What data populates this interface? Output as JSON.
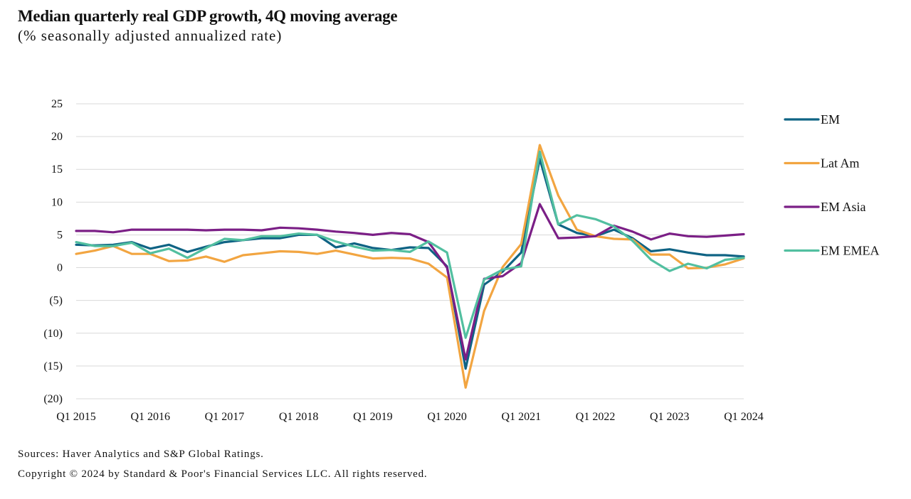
{
  "chart_data": {
    "type": "line",
    "title": "Median quarterly real GDP growth, 4Q moving average",
    "subtitle": "(% seasonally adjusted annualized rate)",
    "xlabel": "",
    "ylabel": "",
    "ylim": [
      -20,
      25
    ],
    "yticks": [
      25,
      20,
      15,
      10,
      5,
      0,
      -5,
      -10,
      -15,
      -20
    ],
    "ytick_labels": [
      "25",
      "20",
      "15",
      "10",
      "5",
      "0",
      "(5)",
      "(10)",
      "(15)",
      "(20)"
    ],
    "grid": true,
    "legend_position": "right",
    "x": [
      "Q1 2015",
      "Q2 2015",
      "Q3 2015",
      "Q4 2015",
      "Q1 2016",
      "Q2 2016",
      "Q3 2016",
      "Q4 2016",
      "Q1 2017",
      "Q2 2017",
      "Q3 2017",
      "Q4 2017",
      "Q1 2018",
      "Q2 2018",
      "Q3 2018",
      "Q4 2018",
      "Q1 2019",
      "Q2 2019",
      "Q3 2019",
      "Q4 2019",
      "Q1 2020",
      "Q2 2020",
      "Q3 2020",
      "Q4 2020",
      "Q1 2021",
      "Q2 2021",
      "Q3 2021",
      "Q4 2021",
      "Q1 2022",
      "Q2 2022",
      "Q3 2022",
      "Q4 2022",
      "Q1 2023",
      "Q2 2023",
      "Q3 2023",
      "Q4 2023",
      "Q1 2024"
    ],
    "xtick_labels": [
      "Q1 2015",
      "Q1 2016",
      "Q1 2017",
      "Q1 2018",
      "Q1 2019",
      "Q1 2020",
      "Q1 2021",
      "Q1 2022",
      "Q1 2023",
      "Q1 2024"
    ],
    "series": [
      {
        "name": "EM",
        "color": "#0f6384",
        "values": [
          3.5,
          3.4,
          3.5,
          3.9,
          2.9,
          3.5,
          2.4,
          3.2,
          3.9,
          4.2,
          4.5,
          4.5,
          5.0,
          5.0,
          3.1,
          3.7,
          3.0,
          2.7,
          3.1,
          3.0,
          0.2,
          -15.4,
          -2.6,
          -0.6,
          2.3,
          16.6,
          6.6,
          5.3,
          4.8,
          5.8,
          4.5,
          2.5,
          2.8,
          2.3,
          1.9,
          1.9,
          1.7
        ]
      },
      {
        "name": "Lat Am",
        "color": "#f2a541",
        "values": [
          2.1,
          2.6,
          3.3,
          2.1,
          2.1,
          1.0,
          1.1,
          1.7,
          0.9,
          1.9,
          2.2,
          2.5,
          2.4,
          2.1,
          2.6,
          2.0,
          1.4,
          1.5,
          1.4,
          0.6,
          -1.5,
          -18.3,
          -6.6,
          0.1,
          3.6,
          18.7,
          11.0,
          5.8,
          4.8,
          4.4,
          4.3,
          2.0,
          2.0,
          -0.1,
          0.0,
          0.5,
          1.4
        ]
      },
      {
        "name": "EM Asia",
        "color": "#7b1f86",
        "values": [
          5.6,
          5.6,
          5.4,
          5.8,
          5.8,
          5.8,
          5.8,
          5.7,
          5.8,
          5.8,
          5.7,
          6.1,
          6.0,
          5.8,
          5.5,
          5.3,
          5.0,
          5.3,
          5.1,
          3.9,
          0.0,
          -14.0,
          -1.7,
          -1.3,
          0.7,
          9.7,
          4.5,
          4.6,
          4.8,
          6.4,
          5.5,
          4.3,
          5.2,
          4.8,
          4.7,
          4.9,
          5.1
        ]
      },
      {
        "name": "EM EMEA",
        "color": "#52bfa0",
        "values": [
          3.9,
          3.3,
          3.3,
          3.8,
          2.2,
          2.9,
          1.5,
          3.0,
          4.4,
          4.2,
          4.8,
          4.8,
          5.2,
          5.0,
          4.0,
          3.2,
          2.6,
          2.7,
          2.4,
          4.0,
          2.3,
          -10.7,
          -1.8,
          -0.3,
          0.2,
          17.7,
          6.6,
          8.0,
          7.4,
          6.3,
          4.1,
          1.2,
          -0.5,
          0.6,
          -0.1,
          1.2,
          1.5
        ]
      }
    ]
  },
  "footer": {
    "sources": "Sources: Haver Analytics and S&P Global Ratings.",
    "copyright": "Copyright © 2024 by Standard & Poor's Financial Services LLC. All rights reserved."
  }
}
